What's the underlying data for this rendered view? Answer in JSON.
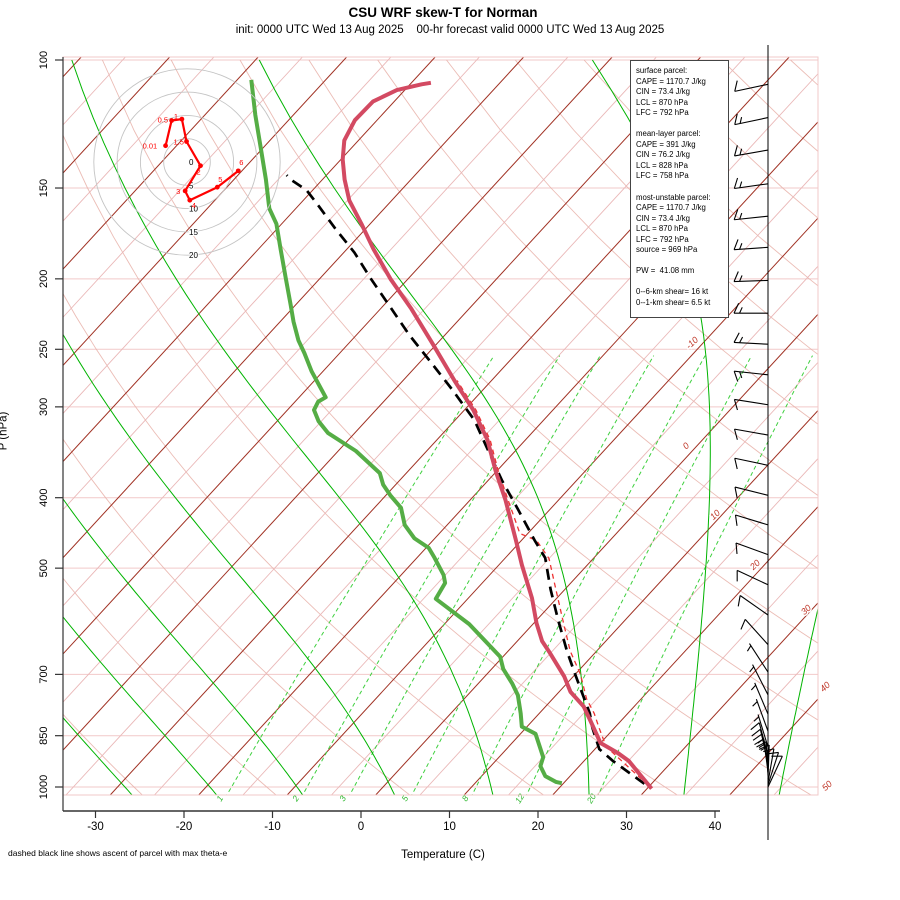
{
  "header": {
    "title": "CSU WRF skew-T for Norman",
    "subtitle": "init: 0000 UTC Wed 13 Aug 2025    00-hr forecast valid 0000 UTC Wed 13 Aug 2025"
  },
  "footnote": "dashed black line shows ascent of parcel with max theta-e",
  "axes": {
    "xlabel": "Temperature (C)",
    "ylabel": "P (hPa)",
    "x_ticks": [
      -30,
      -20,
      -10,
      0,
      10,
      20,
      30,
      40
    ],
    "p_ticks": [
      100,
      150,
      200,
      250,
      300,
      400,
      500,
      700,
      850,
      1000
    ]
  },
  "legend": {
    "lines": [
      "surface parcel:",
      "CAPE = 1170.7 J/kg",
      "CIN = 73.4 J/kg",
      "LCL = 870 hPa",
      "LFC = 792 hPa",
      " ",
      "mean-layer parcel:",
      "CAPE = 391 J/kg",
      "CIN = 76.2 J/kg",
      "LCL = 828 hPa",
      "LFC = 758 hPa",
      " ",
      "most-unstable parcel:",
      "CAPE = 1170.7 J/kg",
      "CIN = 73.4 J/kg",
      "LCL = 870 hPa",
      "LFC = 792 hPa",
      "source = 969 hPa",
      " ",
      "PW =  41.08 mm",
      " ",
      "0--6-km shear= 16 kt",
      "0--1-km shear= 6.5 kt"
    ]
  },
  "colors": {
    "temperature": "#d34a62",
    "dewpoint": "#55ad45",
    "parcel": "#000000",
    "virtual": "#ee3333",
    "isotherm": "#a03123",
    "isotherm_minor": "#eab8b8",
    "dry_adiabat": "#e7b0a8",
    "moist_adiabat": "#00b400",
    "mixing_ratio": "#3fd03f",
    "frame": "#f2c9c9",
    "contour_label": "#c0392b",
    "hodograph_trace": "#ff0000"
  },
  "chart_data": {
    "type": "skewt",
    "pressure_range": [
      100,
      1050
    ],
    "temperature_range_at_surface": [
      -35,
      50
    ],
    "temperature_profile": [
      [
        30.5,
        1005
      ],
      [
        27,
        950
      ],
      [
        25,
        920
      ],
      [
        23,
        898
      ],
      [
        20,
        870
      ],
      [
        16.5,
        810
      ],
      [
        14.3,
        775
      ],
      [
        11.3,
        740
      ],
      [
        9,
        705
      ],
      [
        5,
        655
      ],
      [
        2.8,
        630
      ],
      [
        0.3,
        595
      ],
      [
        -2.8,
        550
      ],
      [
        -7.4,
        495
      ],
      [
        -10.7,
        457
      ],
      [
        -16,
        403
      ],
      [
        -20.2,
        367
      ],
      [
        -24.3,
        333
      ],
      [
        -29,
        303
      ],
      [
        -34.2,
        276
      ],
      [
        -40.4,
        246
      ],
      [
        -46.5,
        220
      ],
      [
        -52,
        200
      ],
      [
        -57,
        182
      ],
      [
        -61,
        168
      ],
      [
        -64.8,
        156
      ],
      [
        -67.5,
        146
      ],
      [
        -69.8,
        137
      ],
      [
        -71.6,
        129
      ],
      [
        -72.5,
        121
      ],
      [
        -72.4,
        114
      ],
      [
        -70.9,
        110
      ],
      [
        -68.7,
        108
      ],
      [
        -67.8,
        107.5
      ]
    ],
    "dewpoint_profile": [
      [
        19.8,
        988
      ],
      [
        19,
        984
      ],
      [
        17.2,
        966
      ],
      [
        15.6,
        936
      ],
      [
        15,
        910
      ],
      [
        13.4,
        878
      ],
      [
        11.7,
        845
      ],
      [
        9.4,
        826
      ],
      [
        7.9,
        792
      ],
      [
        5.7,
        748
      ],
      [
        3.8,
        720
      ],
      [
        1.3,
        688
      ],
      [
        -0.3,
        662
      ],
      [
        -7.2,
        597
      ],
      [
        -13.6,
        551
      ],
      [
        -14.2,
        524
      ],
      [
        -15.2,
        511
      ],
      [
        -18,
        484
      ],
      [
        -19.7,
        469
      ],
      [
        -22.3,
        455
      ],
      [
        -24.8,
        436
      ],
      [
        -27,
        413
      ],
      [
        -29.5,
        397
      ],
      [
        -31.4,
        384
      ],
      [
        -33,
        370
      ],
      [
        -38,
        345
      ],
      [
        -43,
        326
      ],
      [
        -45.3,
        314
      ],
      [
        -47,
        303
      ],
      [
        -47.4,
        295
      ],
      [
        -47,
        291
      ],
      [
        -51.3,
        268
      ],
      [
        -54,
        253
      ],
      [
        -56,
        243
      ],
      [
        -58.5,
        229
      ],
      [
        -60.6,
        217
      ],
      [
        -64,
        199
      ],
      [
        -67.5,
        182
      ],
      [
        -70.6,
        168
      ],
      [
        -73,
        160
      ],
      [
        -76.4,
        146
      ],
      [
        -80,
        133
      ],
      [
        -84.3,
        119
      ],
      [
        -88.4,
        106.5
      ]
    ],
    "parcel_max_thetae": [
      [
        29.2,
        990
      ],
      [
        23.2,
        920
      ],
      [
        20.5,
        887
      ],
      [
        17.5,
        829
      ],
      [
        15.7,
        792
      ],
      [
        13.8,
        760
      ],
      [
        10,
        700
      ],
      [
        6.7,
        651
      ],
      [
        2.4,
        589
      ],
      [
        -1.6,
        535
      ],
      [
        -5.5,
        484
      ],
      [
        -8.5,
        458
      ],
      [
        -13.5,
        416
      ],
      [
        -18.4,
        379
      ],
      [
        -23.6,
        341
      ],
      [
        -27.8,
        313
      ],
      [
        -33.5,
        284
      ],
      [
        -39.1,
        259
      ],
      [
        -44,
        239
      ],
      [
        -49,
        219
      ],
      [
        -54.2,
        200
      ],
      [
        -58.8,
        184
      ],
      [
        -63.3,
        171
      ],
      [
        -67.6,
        159
      ],
      [
        -70.7,
        151
      ],
      [
        -73.6,
        146
      ],
      [
        -74.5,
        144
      ]
    ],
    "parcel_virtual": [
      [
        29.8,
        995
      ],
      [
        24.2,
        920
      ],
      [
        21,
        880
      ],
      [
        18.3,
        830
      ],
      [
        16.2,
        792
      ],
      [
        13.8,
        756
      ],
      [
        10.6,
        700
      ],
      [
        7,
        650
      ],
      [
        3,
        590
      ],
      [
        -1,
        535
      ],
      [
        -5,
        485
      ],
      [
        -8.3,
        458
      ],
      [
        -10.9,
        448
      ],
      [
        -15.7,
        403
      ],
      [
        -19.9,
        367
      ],
      [
        -24,
        333
      ],
      [
        -28.7,
        303
      ],
      [
        -33.9,
        276
      ]
    ],
    "isotherm_labels": [
      [
        -10,
        694,
        345
      ],
      [
        0,
        688,
        448
      ],
      [
        10,
        717,
        517
      ],
      [
        20,
        757,
        567
      ],
      [
        30,
        808,
        612
      ],
      [
        40,
        827,
        689
      ],
      [
        50,
        829,
        788
      ]
    ],
    "mixing_ratio_values": [
      1,
      2,
      3,
      5,
      8,
      12,
      20
    ],
    "moist_adiabat_surface_temps": [
      -66,
      -56,
      -46,
      -36,
      -26,
      -16.5,
      -6.9,
      3.3,
      14.2,
      24.9,
      35.5,
      46.2
    ],
    "dry_adiabat_thetas_K": [
      245,
      260,
      275,
      290,
      305,
      320,
      335,
      350,
      365,
      380,
      395,
      410,
      425,
      440,
      455,
      470,
      485,
      500,
      515,
      530,
      545,
      560,
      575,
      590,
      605,
      620
    ],
    "hodograph": {
      "ring_interval_kt": 5,
      "rings": [
        5,
        10,
        15,
        20
      ],
      "ring_labels": [
        "0",
        "5",
        "10",
        "15",
        "20"
      ],
      "trace": [
        {
          "km": "0.01",
          "u": -4.6,
          "v": 3.5
        },
        {
          "km": "0.5",
          "u": -3.3,
          "v": 8.9
        },
        {
          "km": "1",
          "u": -1.1,
          "v": 9.2
        },
        {
          "km": "1.5",
          "u": -0.1,
          "v": 4.4
        },
        {
          "km": "2",
          "u": 2.9,
          "v": -0.8
        },
        {
          "km": "3",
          "u": -0.4,
          "v": -6.2
        },
        {
          "km": "4",
          "u": 0.6,
          "v": -8.2
        },
        {
          "km": "5",
          "u": 6.5,
          "v": -5.4
        },
        {
          "km": "6",
          "u": 11.0,
          "v": -1.9
        }
      ]
    },
    "wind_barbs": [
      {
        "p": 108,
        "dir": 168,
        "spd": 10,
        "side": 1
      },
      {
        "p": 120,
        "dir": 168,
        "spd": 15,
        "side": 1
      },
      {
        "p": 133,
        "dir": 170,
        "spd": 15,
        "side": 1
      },
      {
        "p": 148,
        "dir": 172,
        "spd": 15,
        "side": 1
      },
      {
        "p": 164,
        "dir": 174,
        "spd": 15,
        "side": 1
      },
      {
        "p": 181,
        "dir": 176,
        "spd": 15,
        "side": 1
      },
      {
        "p": 201,
        "dir": 178,
        "spd": 15,
        "side": 1
      },
      {
        "p": 223,
        "dir": 180,
        "spd": 15,
        "side": 1
      },
      {
        "p": 246,
        "dir": 183,
        "spd": 15,
        "side": 1
      },
      {
        "p": 271,
        "dir": 186,
        "spd": 15,
        "side": -1
      },
      {
        "p": 298,
        "dir": 189,
        "spd": 10,
        "side": -1
      },
      {
        "p": 328,
        "dir": 190,
        "spd": 10,
        "side": -1
      },
      {
        "p": 361,
        "dir": 192,
        "spd": 10,
        "side": -1
      },
      {
        "p": 397,
        "dir": 194,
        "spd": 10,
        "side": -1
      },
      {
        "p": 436,
        "dir": 197,
        "spd": 10,
        "side": -1
      },
      {
        "p": 479,
        "dir": 200,
        "spd": 10,
        "side": -1
      },
      {
        "p": 527,
        "dir": 205,
        "spd": 10,
        "side": -1
      },
      {
        "p": 580,
        "dir": 215,
        "spd": 10,
        "side": -1
      },
      {
        "p": 637,
        "dir": 228,
        "spd": 10,
        "side": -1
      },
      {
        "p": 695,
        "dir": 237,
        "spd": 5,
        "side": -1
      },
      {
        "p": 747,
        "dir": 243,
        "spd": 5,
        "side": -1
      },
      {
        "p": 794,
        "dir": 247,
        "spd": 5,
        "side": -1
      },
      {
        "p": 838,
        "dir": 250,
        "spd": 5,
        "side": -1
      },
      {
        "p": 881,
        "dir": 253,
        "spd": 5,
        "side": -1
      },
      {
        "p": 905,
        "dir": 255,
        "spd": 10,
        "side": -1
      },
      {
        "p": 925,
        "dir": 257,
        "spd": 10,
        "side": -1
      },
      {
        "p": 940,
        "dir": 260,
        "spd": 15,
        "side": -1
      },
      {
        "p": 955,
        "dir": 263,
        "spd": 15,
        "side": -1
      },
      {
        "p": 965,
        "dir": 267,
        "spd": 15,
        "side": -1
      },
      {
        "p": 975,
        "dir": 272,
        "spd": 10,
        "side": -1
      },
      {
        "p": 985,
        "dir": 280,
        "spd": 10,
        "side": -1
      },
      {
        "p": 993,
        "dir": 288,
        "spd": 10,
        "side": -1
      },
      {
        "p": 1000,
        "dir": 295,
        "spd": 10,
        "side": -1
      }
    ]
  }
}
